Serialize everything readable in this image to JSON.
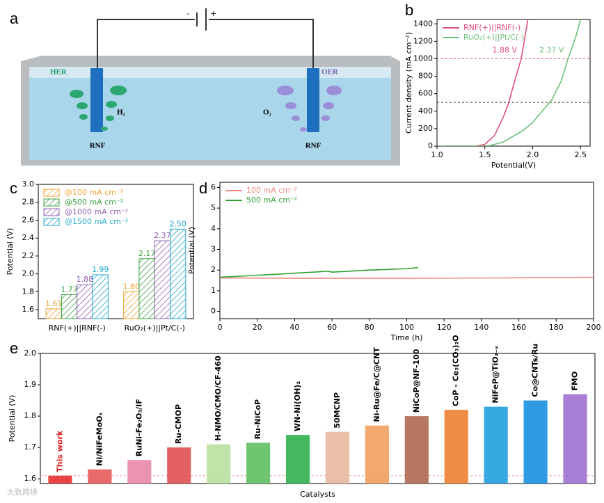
{
  "diagram": {
    "panel": "a",
    "minus": "-",
    "plus": "+",
    "her": "HER",
    "oer": "OER",
    "h2": "H₂",
    "o2": "O₂",
    "left_electrode": "RNF",
    "right_electrode": "RNF"
  },
  "watermark": "大数跨境",
  "chart_data": [
    {
      "panel": "b",
      "type": "line",
      "xlabel": "Potential(V)",
      "ylabel": "Current density (mA cm⁻²)",
      "xlim": [
        1.0,
        2.6
      ],
      "xticks": [
        {
          "value": 1,
          "label": "1.0"
        },
        1.5,
        {
          "value": 2,
          "label": "2.0"
        },
        2.5
      ],
      "ylim": [
        0,
        1450
      ],
      "yticks": [
        0,
        200,
        400,
        600,
        800,
        1000,
        1200,
        1400
      ],
      "legend": "upper left",
      "series": [
        {
          "name": "RNF(+)||RNF(-)",
          "color": "#e0507a",
          "x": [
            1.0,
            1.4,
            1.5,
            1.6,
            1.7,
            1.75,
            1.8,
            1.88,
            1.95
          ],
          "values": [
            0,
            0,
            20,
            120,
            350,
            500,
            700,
            1000,
            1450
          ]
        },
        {
          "name": "RuO₂(+)||Pt/C(-)",
          "color": "#6cbf7a",
          "x": [
            1.0,
            1.45,
            1.55,
            1.7,
            1.9,
            2.0,
            2.1,
            2.2,
            2.3,
            2.37,
            2.45,
            2.5
          ],
          "values": [
            0,
            0,
            5,
            50,
            180,
            270,
            400,
            530,
            750,
            1000,
            1250,
            1450
          ]
        }
      ],
      "hlines": [
        {
          "value": 1000,
          "color": "#e0507a"
        },
        {
          "value": 500,
          "color": "#555555"
        }
      ],
      "annotations": [
        "1.88 V",
        "2.37 V"
      ]
    },
    {
      "panel": "c",
      "type": "bar",
      "ylabel": "Potential (V)",
      "categories": [
        "RNF(+)||RNF(-)",
        "RuO₂(+)||Pt/C(-)"
      ],
      "ylim": [
        1.5,
        3.0
      ],
      "yticks": [
        1.6,
        1.8,
        {
          "value": 2,
          "label": "2.0"
        },
        2.2,
        2.4,
        2.6,
        2.8,
        {
          "value": 3,
          "label": "3.0"
        }
      ],
      "legend": "upper left",
      "series": [
        {
          "name": "@100 mA cm⁻²",
          "color": "#f0a030",
          "values": [
            1.61,
            1.8
          ],
          "value_labels": [
            "1.61",
            "1.80"
          ]
        },
        {
          "name": "@500 mA cm⁻²",
          "color": "#3aa040",
          "values": [
            1.77,
            2.17
          ],
          "value_labels": [
            "1.77",
            "2.17"
          ]
        },
        {
          "name": "@1000 mA cm⁻²",
          "color": "#9060b0",
          "values": [
            1.88,
            2.37
          ],
          "value_labels": [
            "1.88",
            "2.37"
          ]
        },
        {
          "name": "@1500 mA cm⁻²",
          "color": "#20a8c8",
          "values": [
            1.99,
            2.5
          ],
          "value_labels": [
            "1.99",
            "2.50"
          ]
        }
      ]
    },
    {
      "panel": "d",
      "type": "line",
      "xlabel": "Time (h)",
      "ylabel": "Potential (V)",
      "xlim": [
        0,
        200
      ],
      "xticks": [
        0,
        20,
        40,
        60,
        80,
        100,
        120,
        140,
        160,
        180,
        200
      ],
      "ylim": [
        -0.35,
        6.25
      ],
      "yticks": [
        0,
        1,
        2,
        3,
        4,
        5,
        6
      ],
      "legend": "upper left",
      "series": [
        {
          "name": "100 mA cm⁻²",
          "color": "#f08a80",
          "x": [
            0,
            50,
            100,
            150,
            200
          ],
          "values": [
            1.62,
            1.6,
            1.6,
            1.62,
            1.65
          ]
        },
        {
          "name": "500 mA cm⁻²",
          "color": "#30a030",
          "x": [
            0,
            10,
            20,
            30,
            40,
            50,
            58,
            60,
            70,
            80,
            90,
            100,
            106
          ],
          "values": [
            1.65,
            1.7,
            1.75,
            1.8,
            1.85,
            1.9,
            1.95,
            1.9,
            1.95,
            2.0,
            2.03,
            2.07,
            2.12
          ]
        }
      ]
    },
    {
      "panel": "e",
      "type": "bar",
      "xlabel": "Catalysts",
      "ylabel": "Potential (V)",
      "ylim": [
        1.585,
        2.0
      ],
      "yticks": [
        1.6,
        1.7,
        1.8,
        1.9,
        {
          "value": 2,
          "label": "2.0"
        }
      ],
      "categories": [
        "This work",
        "Ni/NiFeMoOₓ",
        "RuNi-Fe₂O₃/IF",
        "Ru-CMOP",
        "H-NMO/CMO/CF-460",
        "Ru-NiCoP",
        "WN-Ni(OH)₂",
        "50MCNP",
        "Ni-Ru@Fe/C@CNT",
        "NiCoP@NF-100",
        "CoP - Ce₂(CO₃)₂O",
        "NiFeP@TiO₂₋ₓ",
        "Co@CNTs/Ru",
        "FMO"
      ],
      "values": [
        1.61,
        1.63,
        1.66,
        1.7,
        1.71,
        1.715,
        1.74,
        1.75,
        1.77,
        1.8,
        1.82,
        1.83,
        1.85,
        1.87
      ],
      "colors": [
        "#e53030",
        "#e85a5a",
        "#e888a8",
        "#e05050",
        "#b8e0a0",
        "#60c060",
        "#30b050",
        "#e8b8a0",
        "#f0a060",
        "#b06850",
        "#f08030",
        "#20a0e0",
        "#1890e0",
        "#a070d0"
      ],
      "label_colors": [
        "#e02020",
        "#000000",
        "#000000",
        "#000000",
        "#000000",
        "#000000",
        "#000000",
        "#000000",
        "#000000",
        "#000000",
        "#000000",
        "#000000",
        "#000000",
        "#000000"
      ],
      "hlines": [
        {
          "value": 1.61,
          "color": "#e8a0a0"
        }
      ]
    }
  ]
}
